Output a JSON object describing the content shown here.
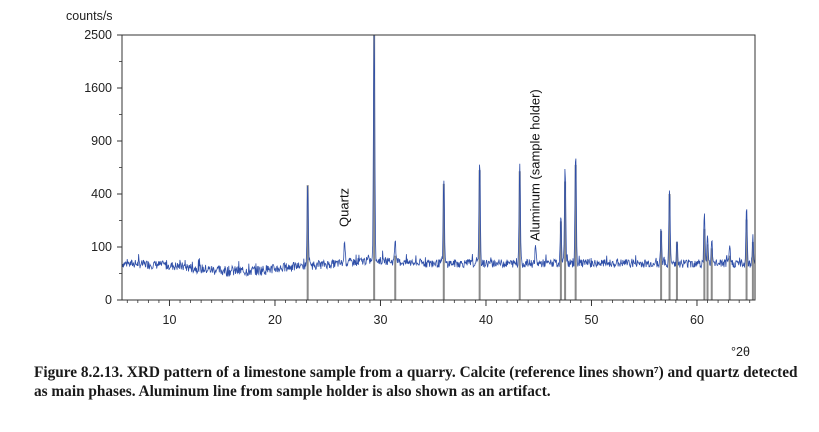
{
  "chart_data": {
    "type": "line",
    "ylabel": "counts/s",
    "xlabel": "°2θ",
    "y_scale": "sqrt",
    "xlim": [
      5.5,
      65.5
    ],
    "ylim": [
      0,
      2500
    ],
    "x_ticks": [
      10,
      20,
      30,
      40,
      50,
      60
    ],
    "y_ticks": [
      0,
      100,
      400,
      900,
      1600,
      2500
    ],
    "grid": false,
    "pattern_color": "#2f4fa8",
    "reference_color": "#8a8a8a",
    "reference_lines": [
      {
        "x": 23.1,
        "intensity": 470
      },
      {
        "x": 29.4,
        "intensity": 2500
      },
      {
        "x": 31.4,
        "intensity": 70
      },
      {
        "x": 36.0,
        "intensity": 480
      },
      {
        "x": 39.4,
        "intensity": 600
      },
      {
        "x": 43.2,
        "intensity": 590
      },
      {
        "x": 47.1,
        "intensity": 220
      },
      {
        "x": 47.5,
        "intensity": 500
      },
      {
        "x": 48.5,
        "intensity": 650
      },
      {
        "x": 56.6,
        "intensity": 170
      },
      {
        "x": 57.4,
        "intensity": 400
      },
      {
        "x": 58.1,
        "intensity": 120
      },
      {
        "x": 60.7,
        "intensity": 180
      },
      {
        "x": 61.0,
        "intensity": 110
      },
      {
        "x": 61.4,
        "intensity": 95
      },
      {
        "x": 63.1,
        "intensity": 70
      },
      {
        "x": 64.7,
        "intensity": 230
      },
      {
        "x": 65.3,
        "intensity": 120
      }
    ],
    "peaks": [
      {
        "x": 23.1,
        "y": 470
      },
      {
        "x": 26.6,
        "y": 120
      },
      {
        "x": 29.4,
        "y": 2500
      },
      {
        "x": 31.4,
        "y": 120
      },
      {
        "x": 36.0,
        "y": 500
      },
      {
        "x": 39.4,
        "y": 680
      },
      {
        "x": 43.2,
        "y": 660
      },
      {
        "x": 44.7,
        "y": 95
      },
      {
        "x": 47.1,
        "y": 240
      },
      {
        "x": 47.5,
        "y": 620
      },
      {
        "x": 48.5,
        "y": 760
      },
      {
        "x": 56.6,
        "y": 180
      },
      {
        "x": 57.4,
        "y": 430
      },
      {
        "x": 58.1,
        "y": 120
      },
      {
        "x": 60.7,
        "y": 260
      },
      {
        "x": 61.0,
        "y": 150
      },
      {
        "x": 61.4,
        "y": 120
      },
      {
        "x": 63.1,
        "y": 100
      },
      {
        "x": 64.7,
        "y": 300
      },
      {
        "x": 65.3,
        "y": 130
      }
    ],
    "annotations": [
      {
        "text": "Quartz",
        "x": 26.6,
        "intensity": 160
      },
      {
        "text": "Aluminum (sample holder)",
        "x": 44.7,
        "intensity": 100
      }
    ]
  },
  "caption": "Figure 8.2.13. XRD pattern of a limestone sample from a quarry. Calcite (reference lines shown⁷) and quartz detected as main phases. Aluminum line from sample holder is also shown as an artifact."
}
